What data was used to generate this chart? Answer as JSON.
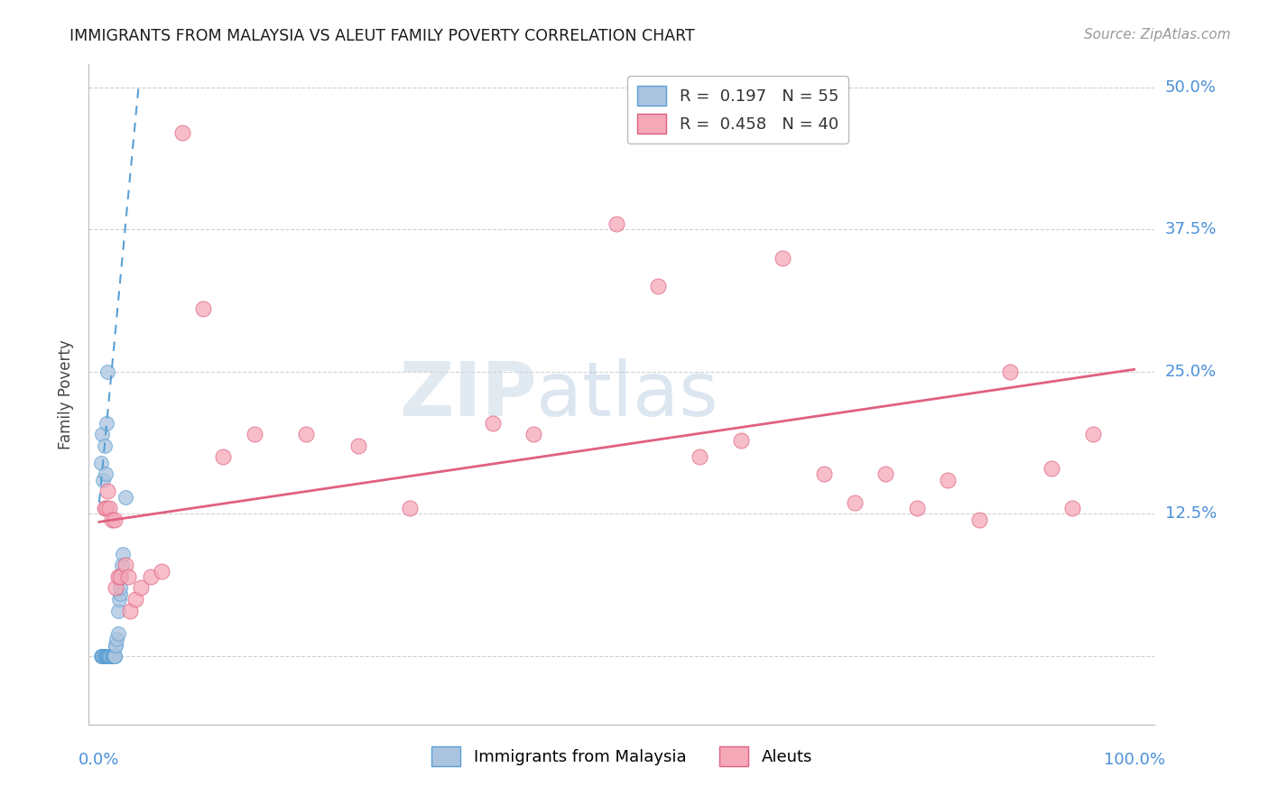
{
  "title": "IMMIGRANTS FROM MALAYSIA VS ALEUT FAMILY POVERTY CORRELATION CHART",
  "source": "Source: ZipAtlas.com",
  "ylabel": "Family Poverty",
  "y_ticks": [
    0.0,
    0.125,
    0.25,
    0.375,
    0.5
  ],
  "x_ticks": [
    0.0,
    0.2,
    0.4,
    0.6,
    0.8,
    1.0
  ],
  "xlim": [
    -0.01,
    1.02
  ],
  "ylim": [
    -0.06,
    0.52
  ],
  "legend_blue_r": "R =  0.197",
  "legend_blue_n": "N = 55",
  "legend_pink_r": "R =  0.458",
  "legend_pink_n": "N = 40",
  "blue_color": "#aac4e0",
  "blue_edge_color": "#5a9fd4",
  "pink_color": "#f5a8b8",
  "pink_edge_color": "#e06080",
  "watermark_zip": "ZIP",
  "watermark_atlas": "atlas",
  "blue_scatter_x": [
    0.002,
    0.003,
    0.003,
    0.004,
    0.004,
    0.005,
    0.005,
    0.006,
    0.006,
    0.006,
    0.007,
    0.007,
    0.007,
    0.008,
    0.008,
    0.008,
    0.009,
    0.009,
    0.009,
    0.009,
    0.01,
    0.01,
    0.01,
    0.01,
    0.011,
    0.011,
    0.011,
    0.012,
    0.012,
    0.013,
    0.013,
    0.014,
    0.014,
    0.015,
    0.015,
    0.015,
    0.016,
    0.016,
    0.017,
    0.018,
    0.018,
    0.019,
    0.02,
    0.02,
    0.021,
    0.022,
    0.023,
    0.025,
    0.002,
    0.003,
    0.004,
    0.005,
    0.006,
    0.007,
    0.008
  ],
  "blue_scatter_y": [
    0.0,
    0.0,
    0.0,
    0.0,
    0.0,
    0.0,
    0.0,
    0.0,
    0.0,
    0.0,
    0.0,
    0.0,
    0.0,
    0.0,
    0.0,
    0.0,
    0.0,
    0.0,
    0.0,
    0.0,
    0.0,
    0.0,
    0.0,
    0.0,
    0.0,
    0.0,
    0.0,
    0.0,
    0.0,
    0.0,
    0.0,
    0.0,
    0.0,
    0.0,
    0.0,
    0.0,
    0.01,
    0.01,
    0.015,
    0.02,
    0.04,
    0.05,
    0.055,
    0.06,
    0.07,
    0.08,
    0.09,
    0.14,
    0.17,
    0.195,
    0.155,
    0.185,
    0.16,
    0.205,
    0.25
  ],
  "pink_scatter_x": [
    0.005,
    0.007,
    0.008,
    0.01,
    0.012,
    0.015,
    0.016,
    0.018,
    0.02,
    0.025,
    0.028,
    0.03,
    0.035,
    0.04,
    0.05,
    0.06,
    0.08,
    0.1,
    0.12,
    0.15,
    0.2,
    0.25,
    0.3,
    0.38,
    0.42,
    0.5,
    0.54,
    0.58,
    0.62,
    0.66,
    0.7,
    0.73,
    0.76,
    0.79,
    0.82,
    0.85,
    0.88,
    0.92,
    0.94,
    0.96
  ],
  "pink_scatter_y": [
    0.13,
    0.13,
    0.145,
    0.13,
    0.12,
    0.12,
    0.06,
    0.07,
    0.07,
    0.08,
    0.07,
    0.04,
    0.05,
    0.06,
    0.07,
    0.075,
    0.46,
    0.305,
    0.175,
    0.195,
    0.195,
    0.185,
    0.13,
    0.205,
    0.195,
    0.38,
    0.325,
    0.175,
    0.19,
    0.35,
    0.16,
    0.135,
    0.16,
    0.13,
    0.155,
    0.12,
    0.25,
    0.165,
    0.13,
    0.195
  ],
  "blue_trend_x0": 0.0,
  "blue_trend_x1": 0.038,
  "blue_trend_y0": 0.135,
  "blue_trend_y1": 0.5,
  "pink_trend_x0": 0.0,
  "pink_trend_x1": 1.0,
  "pink_trend_y0": 0.118,
  "pink_trend_y1": 0.252
}
